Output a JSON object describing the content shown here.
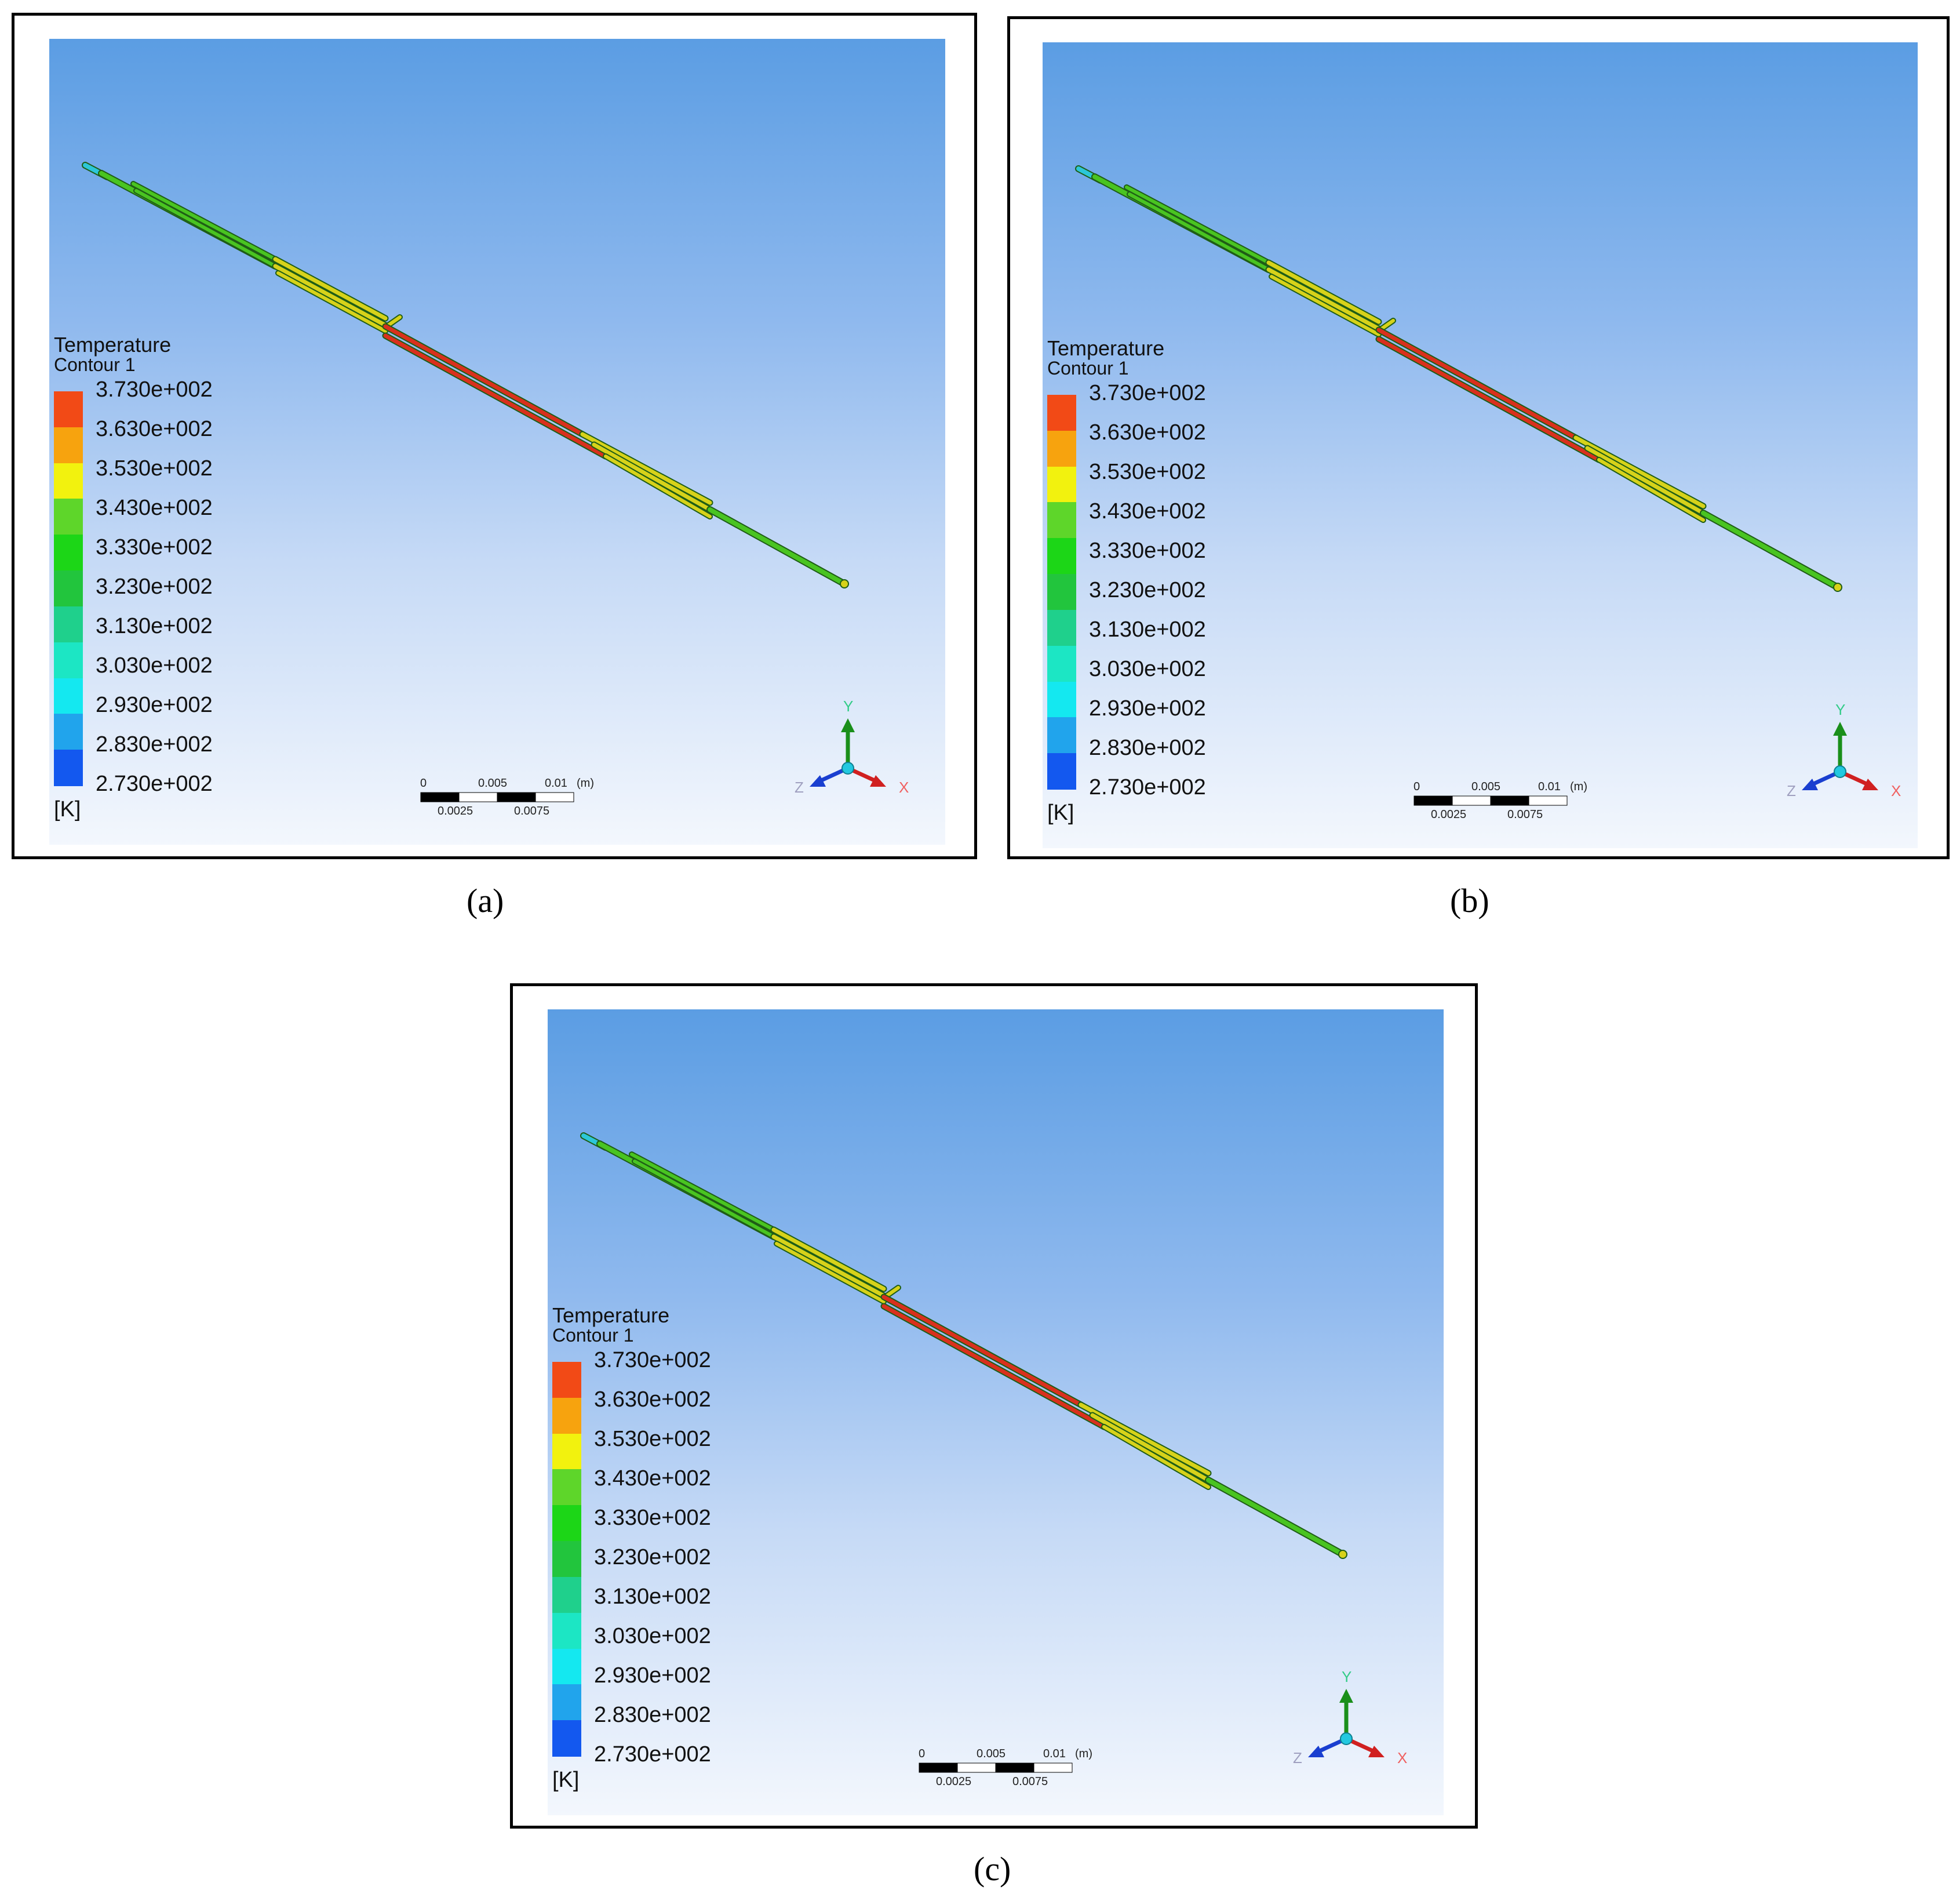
{
  "panels": [
    {
      "id": "a",
      "caption": "(a)",
      "legend": {
        "title": "Temperature",
        "subtitle": "Contour 1",
        "unit": "[K]",
        "labels": [
          "3.730e+002",
          "3.630e+002",
          "3.530e+002",
          "3.430e+002",
          "3.330e+002",
          "3.230e+002",
          "3.130e+002",
          "3.030e+002",
          "2.930e+002",
          "2.830e+002",
          "2.730e+002"
        ]
      },
      "scale_bar": {
        "top_labels": [
          "0",
          "0.005",
          "0.01",
          "(m)"
        ],
        "bottom_labels": [
          "0.0025",
          "0.0075"
        ]
      },
      "axes": {
        "x": "X",
        "y": "Y",
        "z": "Z"
      }
    },
    {
      "id": "b",
      "caption": "(b)",
      "legend": {
        "title": "Temperature",
        "subtitle": "Contour 1",
        "unit": "[K]",
        "labels": [
          "3.730e+002",
          "3.630e+002",
          "3.530e+002",
          "3.430e+002",
          "3.330e+002",
          "3.230e+002",
          "3.130e+002",
          "3.030e+002",
          "2.930e+002",
          "2.830e+002",
          "2.730e+002"
        ]
      },
      "scale_bar": {
        "top_labels": [
          "0",
          "0.005",
          "0.01",
          "(m)"
        ],
        "bottom_labels": [
          "0.0025",
          "0.0075"
        ]
      },
      "axes": {
        "x": "X",
        "y": "Y",
        "z": "Z"
      }
    },
    {
      "id": "c",
      "caption": "(c)",
      "legend": {
        "title": "Temperature",
        "subtitle": "Contour 1",
        "unit": "[K]",
        "labels": [
          "3.730e+002",
          "3.630e+002",
          "3.530e+002",
          "3.430e+002",
          "3.330e+002",
          "3.230e+002",
          "3.130e+002",
          "3.030e+002",
          "2.930e+002",
          "2.830e+002",
          "2.730e+002"
        ]
      },
      "scale_bar": {
        "top_labels": [
          "0",
          "0.005",
          "0.01",
          "(m)"
        ],
        "bottom_labels": [
          "0.0025",
          "0.0075"
        ]
      },
      "axes": {
        "x": "X",
        "y": "Y",
        "z": "Z"
      }
    }
  ],
  "colormap": [
    "#f24a16",
    "#f7a30e",
    "#f2f20e",
    "#5ed62a",
    "#1cd617",
    "#22c53d",
    "#1fd08c",
    "#1ce6c4",
    "#14e8f0",
    "#21a4ec",
    "#1358ef"
  ],
  "tube_colors": {
    "inlet": "#2cc7d8",
    "green": "#49c421",
    "yellow": "#d7d21a",
    "red": "#d9301d",
    "dark": "#1f5d16"
  }
}
